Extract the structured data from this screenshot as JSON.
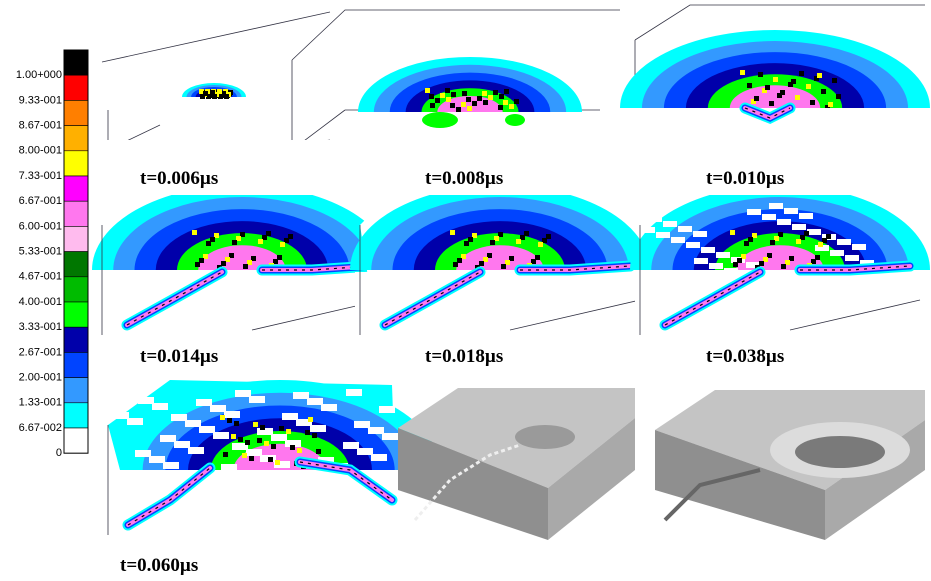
{
  "legend": {
    "levels": [
      {
        "label": "1.00+000",
        "color": "#000000"
      },
      {
        "label": "9.33-001",
        "color": "#ff0000"
      },
      {
        "label": "8.67-001",
        "color": "#ff7f00"
      },
      {
        "label": "8.00-001",
        "color": "#ffb000"
      },
      {
        "label": "7.33-001",
        "color": "#ffff00"
      },
      {
        "label": "6.67-001",
        "color": "#ff00ff"
      },
      {
        "label": "6.00-001",
        "color": "#ff77ee"
      },
      {
        "label": "5.33-001",
        "color": "#ffbbee"
      },
      {
        "label": "4.67-001",
        "color": "#007700"
      },
      {
        "label": "4.00-001",
        "color": "#00bb00"
      },
      {
        "label": "3.33-001",
        "color": "#00ff00"
      },
      {
        "label": "2.67-001",
        "color": "#0000aa"
      },
      {
        "label": "2.00-001",
        "color": "#0044ff"
      },
      {
        "label": "1.33-001",
        "color": "#3399ff"
      },
      {
        "label": "6.67-002",
        "color": "#00ffff"
      },
      {
        "label": "0",
        "color": "#ffffff"
      }
    ]
  },
  "panels": [
    {
      "label": "t=0.006µs"
    },
    {
      "label": "t=0.008µs"
    },
    {
      "label": "t=0.010µs"
    },
    {
      "label": "t=0.014µs"
    },
    {
      "label": "t=0.018µs"
    },
    {
      "label": "t=0.038µs"
    },
    {
      "label": "t=0.060µs"
    }
  ]
}
